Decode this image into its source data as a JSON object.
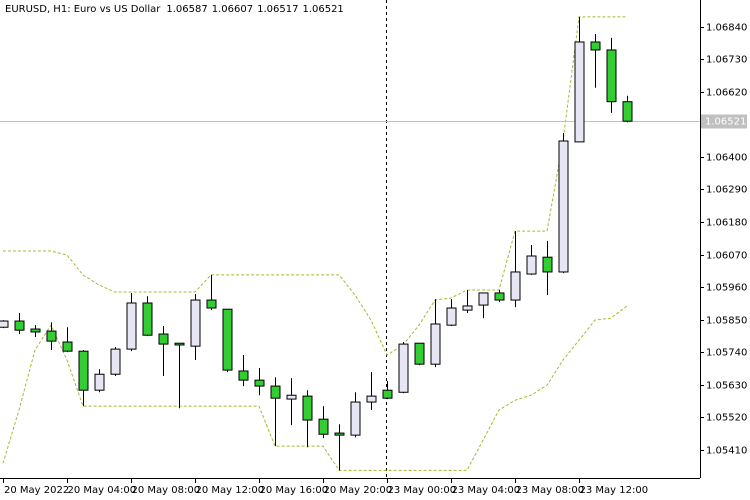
{
  "chart_data": {
    "type": "candlestick",
    "title": "EURUSD, H1:  Euro vs US Dollar",
    "categories": [
      "20 May 2022",
      null,
      null,
      null,
      "20 May 04:00",
      null,
      null,
      null,
      "20 May 08:00",
      null,
      null,
      null,
      "20 May 12:00",
      null,
      null,
      null,
      "20 May 16:00",
      null,
      null,
      null,
      "20 May 20:00",
      null,
      null,
      null,
      "23 May 00:00",
      null,
      null,
      null,
      "23 May 04:00",
      null,
      null,
      null,
      "23 May 08:00",
      null,
      null,
      null,
      "23 May 12:00",
      null,
      null,
      null
    ],
    "open": [
      1.05824,
      1.05845,
      1.05818,
      1.05811,
      1.05774,
      1.05743,
      1.05611,
      1.05665,
      1.0575,
      1.05906,
      1.05801,
      1.0577,
      1.0576,
      1.05916,
      1.05885,
      1.05676,
      1.05645,
      1.05625,
      1.05581,
      1.05591,
      1.05513,
      1.05466,
      1.05459,
      1.05571,
      1.05611,
      1.05604,
      1.0577,
      1.05699,
      1.05831,
      1.05882,
      1.05899,
      1.0594,
      1.05916,
      1.06004,
      1.06061,
      1.06011,
      1.06451,
      1.06789,
      1.06762,
      1.06587
    ],
    "high": [
      1.05848,
      1.05872,
      1.05831,
      1.05841,
      1.05824,
      1.05747,
      1.05682,
      1.05757,
      1.0594,
      1.05929,
      1.05828,
      1.0577,
      1.05936,
      1.06001,
      1.05885,
      1.0573,
      1.05686,
      1.05655,
      1.05652,
      1.05611,
      1.05557,
      1.05496,
      1.05604,
      1.05672,
      1.05642,
      1.05774,
      1.0577,
      1.05919,
      1.05919,
      1.0595,
      1.0594,
      1.0595,
      1.06149,
      1.06102,
      1.06116,
      1.06481,
      1.06874,
      1.06816,
      1.06803,
      1.06607
    ],
    "low": [
      1.05821,
      1.05801,
      1.05791,
      1.05747,
      1.0574,
      1.05557,
      1.05604,
      1.05659,
      1.05743,
      1.05794,
      1.05659,
      1.0555,
      1.05713,
      1.05882,
      1.05672,
      1.05625,
      1.05594,
      1.05422,
      1.05493,
      1.05418,
      1.05449,
      1.0534,
      1.05452,
      1.05544,
      1.05581,
      1.05601,
      1.05696,
      1.05689,
      1.05828,
      1.05872,
      1.05855,
      1.05909,
      1.05892,
      1.06001,
      1.05933,
      1.06007,
      1.06451,
      1.06634,
      1.06549,
      1.06517
    ],
    "close": [
      1.05845,
      1.05814,
      1.05808,
      1.05777,
      1.05743,
      1.05611,
      1.05665,
      1.0575,
      1.05906,
      1.05797,
      1.05767,
      1.05764,
      1.05916,
      1.05889,
      1.05679,
      1.05645,
      1.05625,
      1.05584,
      1.05594,
      1.0551,
      1.05462,
      1.05459,
      1.05571,
      1.05591,
      1.05584,
      1.05767,
      1.05699,
      1.05835,
      1.05889,
      1.05896,
      1.0594,
      1.05916,
      1.06011,
      1.06065,
      1.06011,
      1.06454,
      1.06789,
      1.06762,
      1.06587,
      1.06521
    ],
    "upper": [
      1.06082,
      1.06082,
      1.06082,
      1.06082,
      1.06068,
      1.06001,
      1.05967,
      1.05943,
      1.05943,
      1.05943,
      1.05943,
      1.05943,
      1.05943,
      1.06001,
      1.06001,
      1.06001,
      1.06001,
      1.06001,
      1.06001,
      1.06001,
      1.06001,
      1.06001,
      1.05933,
      1.05848,
      1.0573,
      1.05764,
      1.05831,
      1.05916,
      1.05923,
      1.0595,
      1.0595,
      1.0595,
      1.06149,
      1.06149,
      1.06149,
      1.06454,
      1.06874,
      1.06874,
      1.06874,
      1.06874
    ],
    "lower": [
      1.05364,
      1.05544,
      1.05747,
      1.05831,
      1.05713,
      1.05557,
      1.05557,
      1.05557,
      1.05557,
      1.05557,
      1.05557,
      1.05557,
      1.05557,
      1.05557,
      1.05557,
      1.05557,
      1.05557,
      1.05422,
      1.05422,
      1.05422,
      1.05422,
      1.0534,
      1.0534,
      1.0534,
      1.0534,
      1.0534,
      1.0534,
      1.0534,
      1.0534,
      1.0534,
      1.05442,
      1.05544,
      1.05577,
      1.05594,
      1.05628,
      1.05713,
      1.0578,
      1.05848,
      1.05855,
      1.05896
    ],
    "ylim": [
      1.05314,
      1.06931
    ],
    "yticks": [
      {
        "value": 1.0684,
        "label": "1.06840"
      },
      {
        "value": 1.0673,
        "label": "1.06730"
      },
      {
        "value": 1.0662,
        "label": "1.06620"
      },
      {
        "value": 1.064,
        "label": "1.06400"
      },
      {
        "value": 1.0629,
        "label": "1.06290"
      },
      {
        "value": 1.0618,
        "label": "1.06180"
      },
      {
        "value": 1.0607,
        "label": "1.06070"
      },
      {
        "value": 1.0596,
        "label": "1.05960"
      },
      {
        "value": 1.0585,
        "label": "1.05850"
      },
      {
        "value": 1.0574,
        "label": "1.05740"
      },
      {
        "value": 1.0563,
        "label": "1.05630"
      },
      {
        "value": 1.0552,
        "label": "1.05520"
      },
      {
        "value": 1.0541,
        "label": "1.05410"
      }
    ],
    "up_color": "#e6e6f5",
    "down_color": "#32cd32",
    "channel_color": "#a8b830"
  }
}
